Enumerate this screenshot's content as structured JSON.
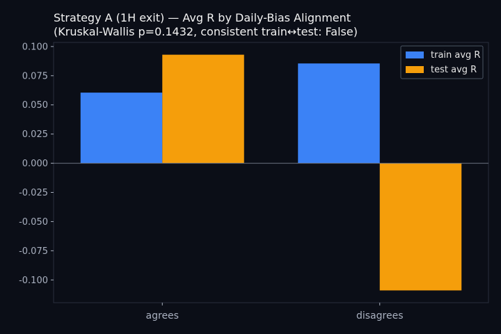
{
  "chart_data": {
    "type": "bar",
    "title_line1": "Strategy A (1H exit) — Avg R by Daily-Bias Alignment",
    "title_line2": "(Kruskal-Wallis p=0.1432, consistent train↔test: False)",
    "categories": [
      "agrees",
      "disagrees"
    ],
    "series": [
      {
        "name": "train avg R",
        "color": "#3b82f6",
        "values": [
          0.0605,
          0.0855
        ]
      },
      {
        "name": "test avg R",
        "color": "#f59e0b",
        "values": [
          0.093,
          -0.109
        ]
      }
    ],
    "yticks": [
      "0.100",
      "0.075",
      "0.050",
      "0.025",
      "0.000",
      "-0.025",
      "-0.050",
      "-0.075",
      "-0.100"
    ],
    "ylim": [
      -0.1195,
      0.1035
    ],
    "grid": false,
    "legend_position": "top-right",
    "xlabel": "",
    "ylabel": ""
  }
}
